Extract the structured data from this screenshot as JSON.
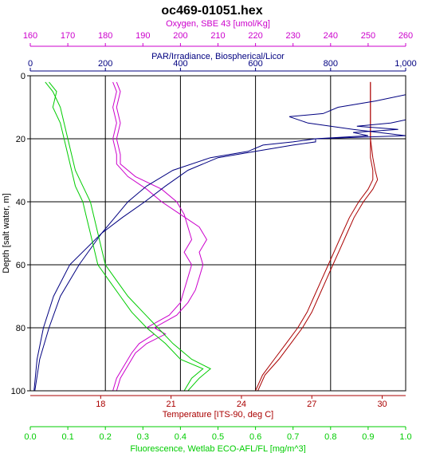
{
  "chart_data": {
    "type": "line",
    "title": "oc469-01051.hex",
    "y_axis": {
      "label": "Depth [salt water, m]",
      "range": [
        0,
        100
      ],
      "inverted": true,
      "ticks": [
        0,
        20,
        40,
        60,
        80,
        100
      ]
    },
    "grid": true,
    "axes": [
      {
        "key": "oxygen",
        "label": "Oxygen, SBE 43 [umol/Kg]",
        "position": "top-outer",
        "color": "#cc00cc",
        "range": [
          160,
          260
        ],
        "tick_labels": [
          "160",
          "170",
          "180",
          "190",
          "200",
          "210",
          "220",
          "230",
          "240",
          "250",
          "260"
        ]
      },
      {
        "key": "par",
        "label": "PAR/Irradiance, Biospherical/Licor",
        "position": "top-inner",
        "color": "#000080",
        "range": [
          0,
          1000
        ],
        "tick_labels": [
          "0",
          "200",
          "400",
          "600",
          "800",
          "1,000"
        ]
      },
      {
        "key": "temperature",
        "label": "Temperature [ITS-90, deg C]",
        "position": "bottom-inner",
        "color": "#aa0000",
        "range": [
          15,
          31
        ],
        "tick_labels": [
          "18",
          "21",
          "24",
          "27",
          "30"
        ]
      },
      {
        "key": "fluorescence",
        "label": "Fluorescence, Wetlab ECO-AFL/FL [mg/m^3]",
        "position": "bottom-outer",
        "color": "#00cc00",
        "range": [
          0,
          1
        ],
        "tick_labels": [
          "0.0",
          "0.1",
          "0.2",
          "0.3",
          "0.4",
          "0.5",
          "0.6",
          "0.7",
          "0.8",
          "0.9",
          "1.0"
        ]
      }
    ],
    "series": [
      {
        "axis": "temperature",
        "color": "#aa0000",
        "depth": [
          2,
          10,
          20,
          26,
          30,
          33,
          36,
          40,
          45,
          50,
          55,
          60,
          65,
          70,
          75,
          80,
          85,
          90,
          95,
          100
        ],
        "values": [
          29.5,
          29.5,
          29.5,
          29.6,
          29.7,
          29.8,
          29.6,
          29.2,
          28.8,
          28.5,
          28.2,
          27.9,
          27.6,
          27.3,
          27.0,
          26.6,
          26.1,
          25.6,
          25.0,
          24.7
        ]
      },
      {
        "axis": "temperature",
        "color": "#aa0000",
        "depth": [
          2,
          10,
          20,
          26,
          30,
          33,
          36,
          40,
          45,
          50,
          55,
          60,
          65,
          70,
          75,
          80,
          85,
          90,
          95,
          100
        ],
        "values": [
          29.5,
          29.5,
          29.5,
          29.5,
          29.6,
          29.6,
          29.4,
          29.0,
          28.6,
          28.3,
          28.0,
          27.7,
          27.4,
          27.1,
          26.8,
          26.4,
          25.9,
          25.4,
          24.9,
          24.6
        ]
      },
      {
        "axis": "oxygen",
        "color": "#cc00cc",
        "depth": [
          2,
          5,
          10,
          15,
          20,
          25,
          28,
          32,
          36,
          40,
          44,
          48,
          52,
          56,
          60,
          64,
          68,
          72,
          76,
          78,
          80,
          82,
          85,
          88,
          92,
          96,
          100
        ],
        "values": [
          183,
          184,
          183,
          184,
          183,
          184,
          184,
          188,
          195,
          199,
          201,
          202,
          203,
          201,
          203,
          202,
          201,
          200,
          197,
          194,
          191,
          193,
          189,
          187,
          185,
          183,
          182
        ]
      },
      {
        "axis": "oxygen",
        "color": "#cc00cc",
        "depth": [
          2,
          5,
          10,
          15,
          20,
          25,
          28,
          32,
          36,
          40,
          44,
          48,
          52,
          56,
          60,
          64,
          68,
          72,
          76,
          78,
          80,
          82,
          85,
          88,
          92,
          96,
          100
        ],
        "values": [
          182,
          183,
          182,
          183,
          182,
          183,
          183,
          186,
          191,
          195,
          200,
          205,
          207,
          205,
          206,
          205,
          204,
          202,
          199,
          196,
          193,
          196,
          191,
          188,
          186,
          184,
          183
        ]
      },
      {
        "axis": "par",
        "color": "#000080",
        "depth": [
          6,
          8,
          10,
          12,
          13,
          15,
          17,
          19,
          20,
          21,
          22,
          24,
          26,
          30,
          35,
          40,
          50,
          60,
          70,
          80,
          90,
          100
        ],
        "values": [
          1000,
          920,
          820,
          780,
          690,
          740,
          860,
          1000,
          760,
          700,
          620,
          580,
          480,
          380,
          310,
          260,
          190,
          130,
          80,
          50,
          25,
          12
        ]
      },
      {
        "axis": "par",
        "color": "#000080",
        "depth": [
          14,
          15,
          16,
          17,
          18,
          19,
          20,
          21,
          22,
          24,
          26,
          30,
          35,
          40,
          45,
          50,
          60,
          70,
          80,
          90,
          100
        ],
        "values": [
          1000,
          960,
          870,
          980,
          860,
          900,
          760,
          760,
          700,
          600,
          500,
          420,
          360,
          305,
          245,
          190,
          105,
          62,
          35,
          18,
          10
        ]
      },
      {
        "axis": "fluorescence",
        "color": "#00cc00",
        "depth": [
          2,
          5,
          10,
          15,
          20,
          25,
          30,
          35,
          40,
          45,
          50,
          55,
          60,
          65,
          70,
          75,
          80,
          85,
          90,
          93,
          96,
          100
        ],
        "values": [
          0.05,
          0.07,
          0.06,
          0.08,
          0.09,
          0.1,
          0.11,
          0.12,
          0.14,
          0.15,
          0.16,
          0.17,
          0.18,
          0.21,
          0.24,
          0.27,
          0.31,
          0.36,
          0.4,
          0.46,
          0.43,
          0.41
        ]
      },
      {
        "axis": "fluorescence",
        "color": "#00cc00",
        "depth": [
          2,
          5,
          10,
          15,
          20,
          25,
          30,
          35,
          40,
          45,
          50,
          55,
          60,
          65,
          70,
          75,
          80,
          85,
          90,
          93,
          96,
          100
        ],
        "values": [
          0.04,
          0.06,
          0.08,
          0.09,
          0.1,
          0.11,
          0.12,
          0.14,
          0.16,
          0.17,
          0.18,
          0.19,
          0.2,
          0.23,
          0.26,
          0.3,
          0.34,
          0.38,
          0.43,
          0.48,
          0.45,
          0.42
        ]
      }
    ]
  }
}
